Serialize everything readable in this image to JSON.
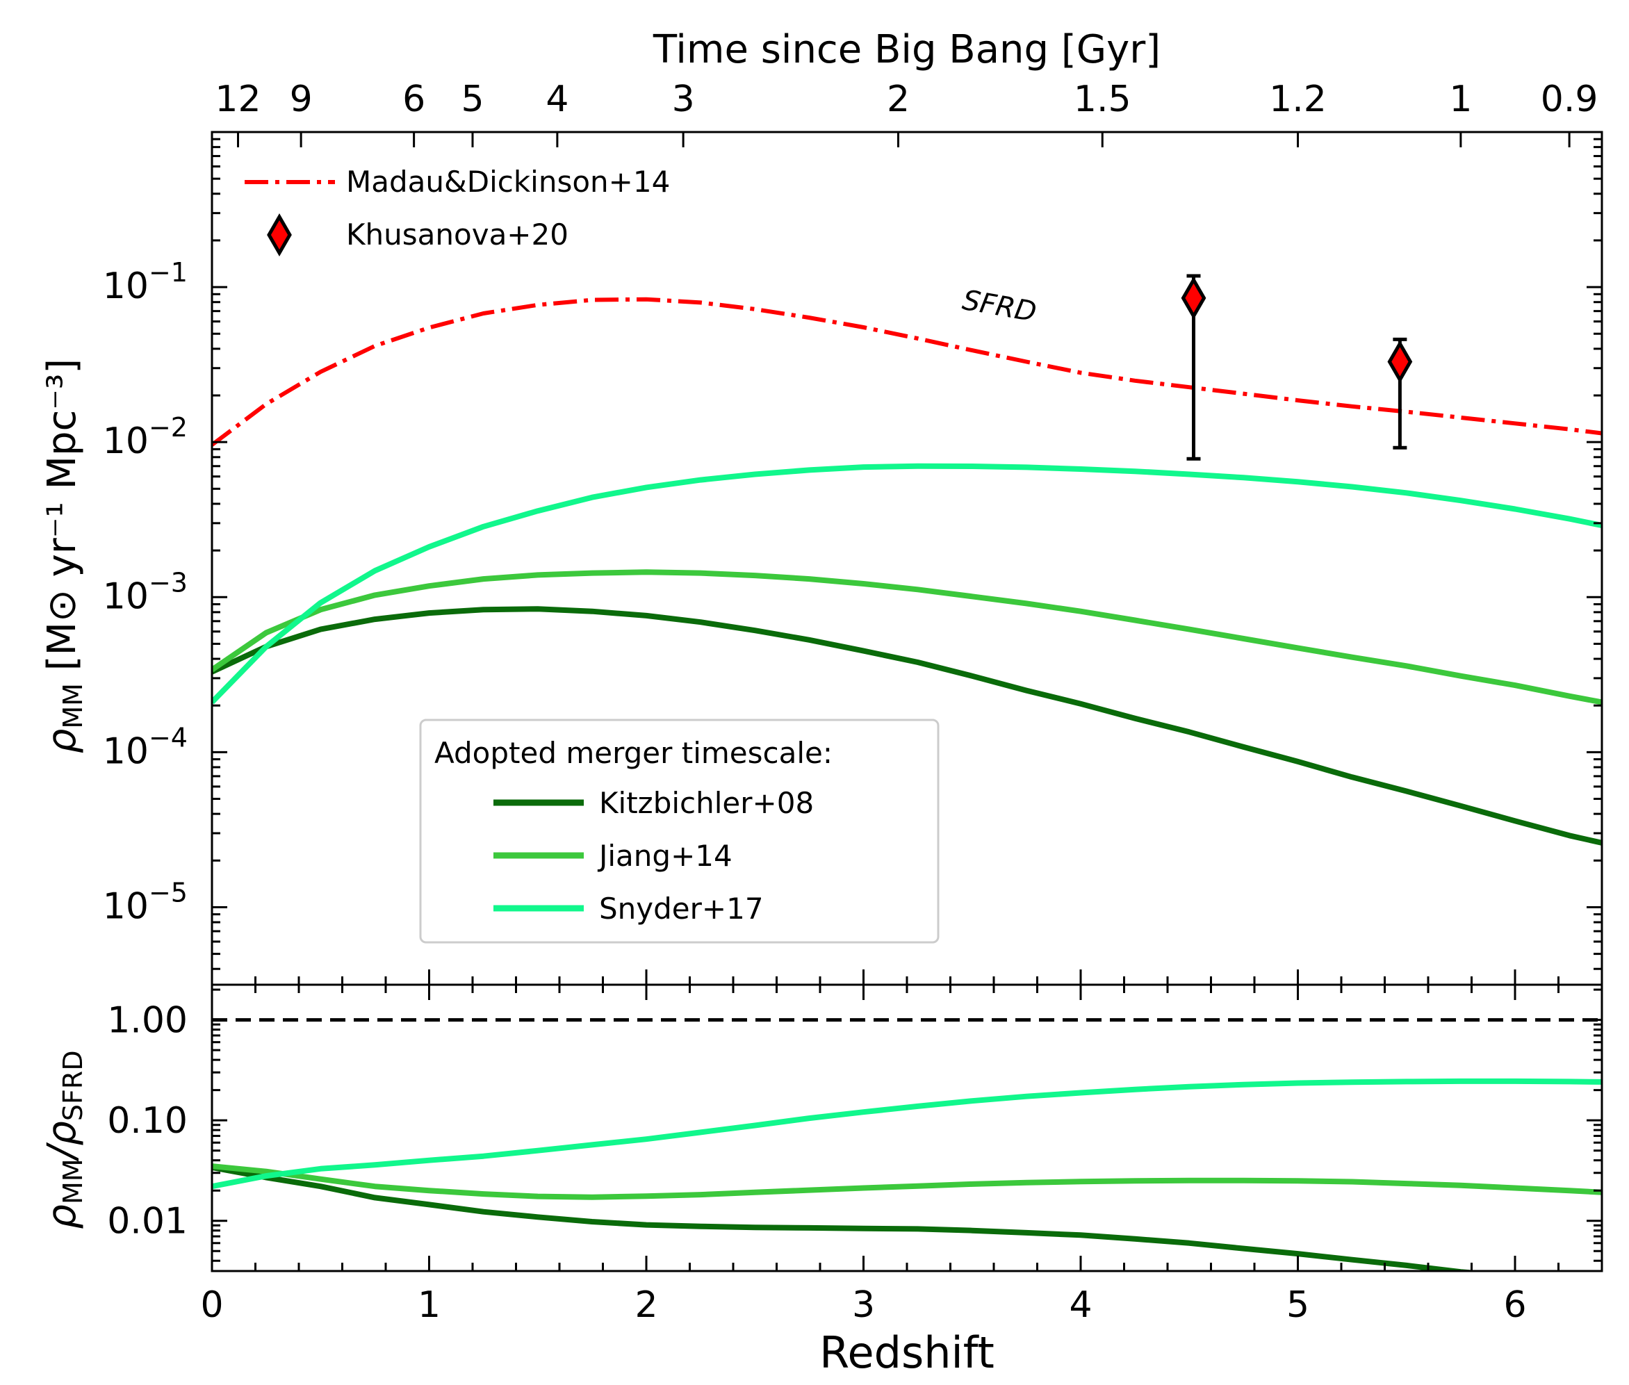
{
  "chart_data": [
    {
      "panel": "top",
      "type": "line",
      "xlabel": "Redshift",
      "top_xlabel": "Time since Big Bang [Gyr]",
      "top_ticks": [
        {
          "label": "12",
          "z": 0.12
        },
        {
          "label": "9",
          "z": 0.41
        },
        {
          "label": "6",
          "z": 0.93
        },
        {
          "label": "5",
          "z": 1.2
        },
        {
          "label": "4",
          "z": 1.59
        },
        {
          "label": "3",
          "z": 2.17
        },
        {
          "label": "2",
          "z": 3.16
        },
        {
          "label": "1.5",
          "z": 4.1
        },
        {
          "label": "1.2",
          "z": 5.0
        },
        {
          "label": "1",
          "z": 5.75
        },
        {
          "label": "0.9",
          "z": 6.25
        }
      ],
      "ylabel_main": "[M⊙ yr⁻¹ Mpc⁻³]",
      "ylabel_symbol": "ρ",
      "ylabel_sub": "MM",
      "yscale": "log",
      "xlim": [
        0,
        6.4
      ],
      "ylim_log10": [
        -5.5,
        0
      ],
      "yticks": [
        {
          "exp": -1,
          "base": "10",
          "sup": "−1"
        },
        {
          "exp": -2,
          "base": "10",
          "sup": "−2"
        },
        {
          "exp": -3,
          "base": "10",
          "sup": "−3"
        },
        {
          "exp": -4,
          "base": "10",
          "sup": "−4"
        },
        {
          "exp": -5,
          "base": "10",
          "sup": "−5"
        }
      ],
      "annotation": {
        "text": "SFRD",
        "z": 3.45,
        "log10": -1.14,
        "color": "#ff0000"
      },
      "series": [
        {
          "name": "Madau&Dickinson+14",
          "color": "#ff0000",
          "style": "dashdot",
          "x": [
            0,
            0.25,
            0.5,
            0.75,
            1.0,
            1.25,
            1.5,
            1.75,
            2.0,
            2.25,
            2.5,
            2.75,
            3.0,
            3.25,
            3.5,
            3.75,
            4.0,
            4.25,
            4.5,
            4.75,
            5.0,
            5.25,
            5.5,
            5.75,
            6.0,
            6.25,
            6.4
          ],
          "y": [
            0.0096,
            0.0176,
            0.0284,
            0.0417,
            0.0547,
            0.0676,
            0.0767,
            0.0826,
            0.0834,
            0.0794,
            0.072,
            0.0635,
            0.055,
            0.0466,
            0.0391,
            0.033,
            0.028,
            0.0249,
            0.0226,
            0.0205,
            0.0186,
            0.017,
            0.0157,
            0.0144,
            0.0132,
            0.0121,
            0.0114
          ]
        },
        {
          "name": "Kitzbichler+08",
          "color": "#0a6b0a",
          "style": "solid",
          "x": [
            0,
            0.25,
            0.5,
            0.75,
            1.0,
            1.25,
            1.5,
            1.75,
            2.0,
            2.25,
            2.5,
            2.75,
            3.0,
            3.25,
            3.5,
            3.75,
            4.0,
            4.25,
            4.5,
            4.75,
            5.0,
            5.25,
            5.5,
            5.75,
            6.0,
            6.25,
            6.4
          ],
          "y": [
            0.00033,
            0.00048,
            0.00062,
            0.00072,
            0.00079,
            0.00083,
            0.00084,
            0.00081,
            0.00076,
            0.00069,
            0.00061,
            0.00053,
            0.00045,
            0.00038,
            0.00031,
            0.00025,
            0.000205,
            0.000165,
            0.000135,
            0.000108,
            8.7e-05,
            6.9e-05,
            5.6e-05,
            4.5e-05,
            3.6e-05,
            2.9e-05,
            2.6e-05
          ]
        },
        {
          "name": "Jiang+14",
          "color": "#3cc83c",
          "style": "solid",
          "x": [
            0,
            0.25,
            0.5,
            0.75,
            1.0,
            1.25,
            1.5,
            1.75,
            2.0,
            2.25,
            2.5,
            2.75,
            3.0,
            3.25,
            3.5,
            3.75,
            4.0,
            4.25,
            4.5,
            4.75,
            5.0,
            5.25,
            5.5,
            5.75,
            6.0,
            6.25,
            6.4
          ],
          "y": [
            0.00034,
            0.00059,
            0.00083,
            0.00103,
            0.00118,
            0.00131,
            0.00139,
            0.00143,
            0.00145,
            0.00143,
            0.00138,
            0.00131,
            0.00122,
            0.00112,
            0.00101,
            0.00091,
            0.00081,
            0.00071,
            0.00062,
            0.00054,
            0.00047,
            0.00041,
            0.00036,
            0.00031,
            0.00027,
            0.00023,
            0.00021
          ]
        },
        {
          "name": "Snyder+17",
          "color": "#11f78c",
          "style": "solid",
          "x": [
            0,
            0.25,
            0.5,
            0.75,
            1.0,
            1.25,
            1.5,
            1.75,
            2.0,
            2.25,
            2.5,
            2.75,
            3.0,
            3.25,
            3.5,
            3.75,
            4.0,
            4.25,
            4.5,
            4.75,
            5.0,
            5.25,
            5.5,
            5.75,
            6.0,
            6.25,
            6.4
          ],
          "y": [
            0.00021,
            0.00048,
            0.00092,
            0.00148,
            0.00211,
            0.00285,
            0.0036,
            0.0044,
            0.0051,
            0.0057,
            0.0062,
            0.0066,
            0.0069,
            0.007,
            0.00698,
            0.00688,
            0.0067,
            0.00648,
            0.0062,
            0.0059,
            0.00555,
            0.00515,
            0.0047,
            0.0042,
            0.0037,
            0.0032,
            0.0029
          ]
        }
      ],
      "points": {
        "name": "Khusanova+20",
        "marker": "diamond",
        "color": "#ff0000",
        "data": [
          {
            "z": 4.52,
            "y": 0.085,
            "y_lo": 0.0078,
            "y_hi": 0.118
          },
          {
            "z": 5.47,
            "y": 0.033,
            "y_lo": 0.0092,
            "y_hi": 0.046
          }
        ]
      },
      "legend_top": {
        "position": "top-left",
        "entries": [
          "Madau&Dickinson+14",
          "Khusanova+20"
        ]
      },
      "legend_bottom": {
        "position": "lower-center",
        "title": "Adopted merger timescale:",
        "entries": [
          "Kitzbichler+08",
          "Jiang+14",
          "Snyder+17"
        ]
      }
    },
    {
      "panel": "bottom",
      "type": "line",
      "xlabel": "Redshift",
      "ylabel_symbol": "ρ",
      "ylabel_sub1": "MM",
      "ylabel_mid": "/ρ",
      "ylabel_sub2": "SFRD",
      "yscale": "log",
      "xlim": [
        0,
        6.4
      ],
      "ylim_log10": [
        -2.5,
        0.35
      ],
      "xticks": [
        "0",
        "1",
        "2",
        "3",
        "4",
        "5",
        "6"
      ],
      "yticks": [
        {
          "value": 1.0,
          "label": "1.00"
        },
        {
          "value": 0.1,
          "label": "0.10"
        },
        {
          "value": 0.01,
          "label": "0.01"
        }
      ],
      "reference_line": {
        "value": 1.0,
        "style": "dashed",
        "color": "#000000"
      },
      "series": [
        {
          "name": "Kitzbichler+08",
          "color": "#0a6b0a",
          "x": [
            0,
            0.25,
            0.5,
            0.75,
            1.0,
            1.25,
            1.5,
            1.75,
            2.0,
            2.25,
            2.5,
            2.75,
            3.0,
            3.25,
            3.5,
            3.75,
            4.0,
            4.25,
            4.5,
            4.75,
            5.0,
            5.25,
            5.5,
            5.75,
            6.0,
            6.25,
            6.4
          ],
          "y": [
            0.034,
            0.027,
            0.022,
            0.017,
            0.0145,
            0.0123,
            0.0109,
            0.0098,
            0.0091,
            0.0088,
            0.0086,
            0.0085,
            0.0084,
            0.0083,
            0.008,
            0.0076,
            0.0072,
            0.0066,
            0.006,
            0.0053,
            0.0047,
            0.0041,
            0.0036,
            0.0031,
            0.0028,
            0.0025,
            0.0023
          ]
        },
        {
          "name": "Jiang+14",
          "color": "#3cc83c",
          "x": [
            0,
            0.25,
            0.5,
            0.75,
            1.0,
            1.25,
            1.5,
            1.75,
            2.0,
            2.25,
            2.5,
            2.75,
            3.0,
            3.25,
            3.5,
            3.75,
            4.0,
            4.25,
            4.5,
            4.75,
            5.0,
            5.25,
            5.5,
            5.75,
            6.0,
            6.25,
            6.4
          ],
          "y": [
            0.035,
            0.031,
            0.026,
            0.022,
            0.02,
            0.0185,
            0.0175,
            0.0172,
            0.0176,
            0.0182,
            0.0192,
            0.0202,
            0.0212,
            0.0222,
            0.0232,
            0.024,
            0.0246,
            0.025,
            0.0252,
            0.0252,
            0.025,
            0.0245,
            0.0235,
            0.0225,
            0.0212,
            0.02,
            0.0192
          ]
        },
        {
          "name": "Snyder+17",
          "color": "#11f78c",
          "x": [
            0,
            0.25,
            0.5,
            0.75,
            1.0,
            1.25,
            1.5,
            1.75,
            2.0,
            2.25,
            2.5,
            2.75,
            3.0,
            3.25,
            3.5,
            3.75,
            4.0,
            4.25,
            4.5,
            4.75,
            5.0,
            5.25,
            5.5,
            5.75,
            6.0,
            6.25,
            6.4
          ],
          "y": [
            0.022,
            0.028,
            0.033,
            0.036,
            0.04,
            0.044,
            0.05,
            0.057,
            0.065,
            0.076,
            0.089,
            0.105,
            0.121,
            0.138,
            0.156,
            0.173,
            0.188,
            0.203,
            0.216,
            0.227,
            0.235,
            0.24,
            0.243,
            0.245,
            0.245,
            0.243,
            0.241
          ]
        }
      ]
    }
  ]
}
